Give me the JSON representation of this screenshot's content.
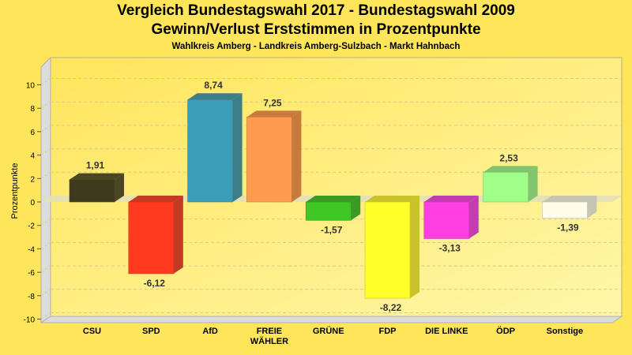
{
  "chart_data": {
    "type": "bar",
    "title": "Vergleich Bundestagswahl 2017 - Bundestagswahl 2009",
    "subtitle": "Gewinn/Verlust Erststimmen in Prozentpunkte",
    "subsubtitle": "Wahlkreis Amberg - Landkreis Amberg-Sulzbach - Markt Hahnbach",
    "xlabel": "",
    "ylabel": "Prozentpunkte",
    "ylim": [
      -10,
      10
    ],
    "yticks": [
      10,
      8,
      6,
      4,
      2,
      0,
      -2,
      -4,
      -6,
      -8,
      -10
    ],
    "yticklabels": [
      "10",
      "8",
      "6",
      "4",
      "2",
      "0",
      "-2",
      "-4",
      "-6",
      "-8",
      "-10"
    ],
    "grid": true,
    "categories": [
      "CSU",
      "SPD",
      "AfD",
      "FREIE WÄHLER",
      "GRÜNE",
      "FDP",
      "DIE LINKE",
      "ÖDP",
      "Sonstige"
    ],
    "category_lines": [
      [
        "CSU"
      ],
      [
        "SPD"
      ],
      [
        "AfD"
      ],
      [
        "FREIE",
        "WÄHLER"
      ],
      [
        "GRÜNE"
      ],
      [
        "FDP"
      ],
      [
        "DIE LINKE"
      ],
      [
        "ÖDP"
      ],
      [
        "Sonstige"
      ]
    ],
    "values": [
      1.91,
      -6.12,
      8.74,
      7.25,
      -1.57,
      -8.22,
      -3.13,
      2.53,
      -1.39
    ],
    "value_labels": [
      "1,91",
      "-6,12",
      "8,74",
      "7,25",
      "-1,57",
      "-8,22",
      "-3,13",
      "2,53",
      "-1,39"
    ],
    "colors": [
      "#3E3A1E",
      "#FF3A1F",
      "#3B9DB8",
      "#FF9B4E",
      "#3FC825",
      "#FFFF2A",
      "#FF3FE0",
      "#A0FF88",
      "#FFFDE8"
    ],
    "side_colors": [
      "#4A4523",
      "#C33A22",
      "#3E7E89",
      "#C77A3E",
      "#3A9A24",
      "#C8C32B",
      "#C33DB0",
      "#82C46E",
      "#C6C4B2"
    ],
    "top_colors": [
      "#4A4523",
      "#C33A22",
      "#3E7E89",
      "#C77A3E",
      "#3A9A24",
      "#C8C32B",
      "#C33DB0",
      "#82C46E",
      "#C6C4B2"
    ]
  }
}
